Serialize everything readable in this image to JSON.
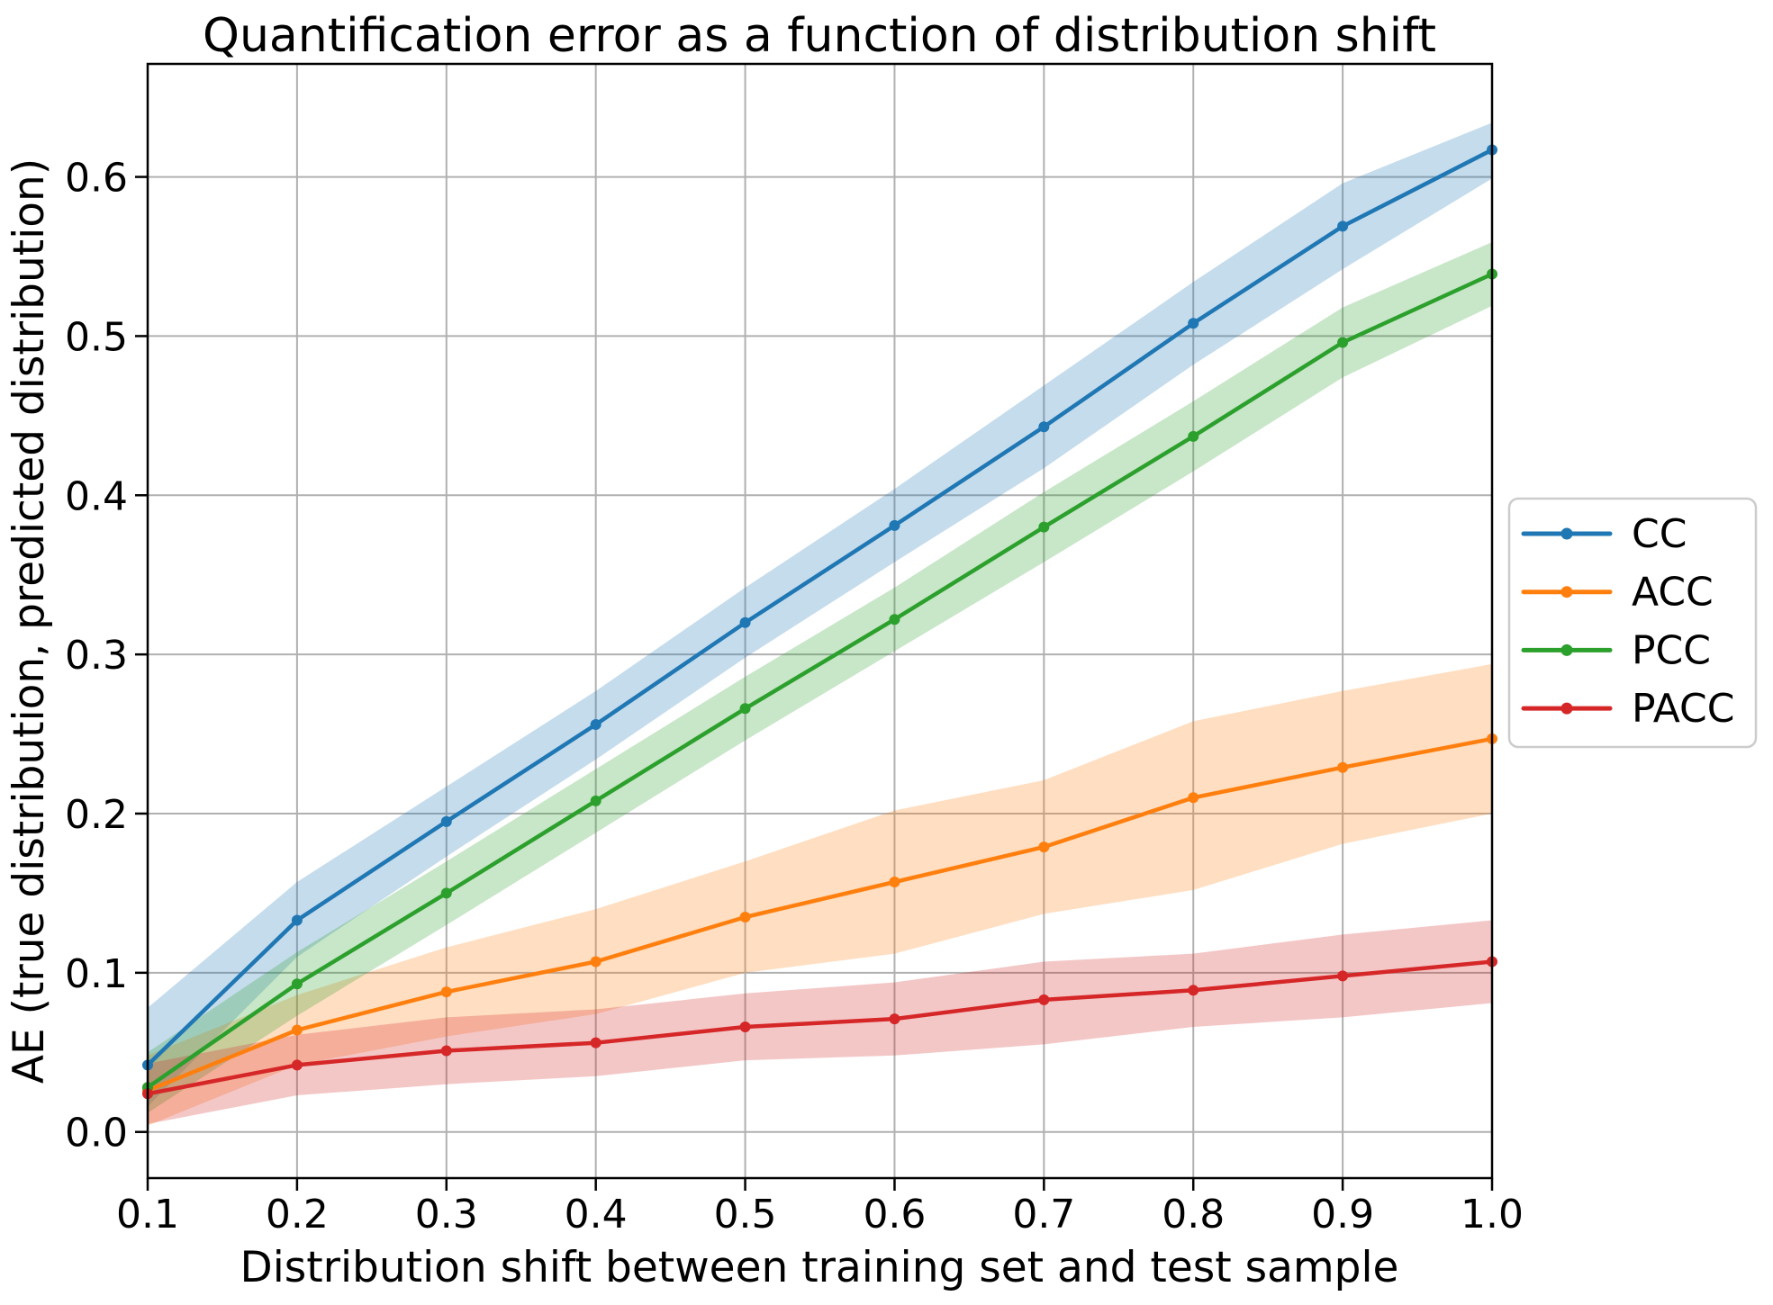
{
  "figure": {
    "background": "#ffffff"
  },
  "chart_data": {
    "type": "line",
    "title": "Quantification error as a function of distribution shift",
    "xlabel": "Distribution shift between training set and test sample",
    "ylabel": "AE (true distribution, predicted distribution)",
    "x": [
      0.1,
      0.2,
      0.3,
      0.4,
      0.5,
      0.6,
      0.7,
      0.8,
      0.9,
      1.0
    ],
    "x_tick_labels": [
      "0.1",
      "0.2",
      "0.3",
      "0.4",
      "0.5",
      "0.6",
      "0.7",
      "0.8",
      "0.9",
      "1.0"
    ],
    "y_ticks": [
      0.0,
      0.1,
      0.2,
      0.3,
      0.4,
      0.5,
      0.6
    ],
    "y_tick_labels": [
      "0.0",
      "0.1",
      "0.2",
      "0.3",
      "0.4",
      "0.5",
      "0.6"
    ],
    "xlim": [
      0.1,
      1.0
    ],
    "ylim": [
      -0.029,
      0.671
    ],
    "grid": true,
    "grid_color": "#b0b0b0",
    "spine_color": "#000000",
    "text_color": "#000000",
    "band_opacity": 0.26,
    "legend_position": "outside-right",
    "legend_border_color": "#cccccc",
    "legend_background": "#ffffff",
    "series": [
      {
        "name": "CC",
        "color": "#1f77b4",
        "values": [
          0.042,
          0.133,
          0.195,
          0.256,
          0.32,
          0.381,
          0.443,
          0.508,
          0.569,
          0.617
        ],
        "band_lower": [
          0.016,
          0.11,
          0.173,
          0.234,
          0.298,
          0.358,
          0.417,
          0.482,
          0.542,
          0.599
        ],
        "band_upper": [
          0.078,
          0.157,
          0.217,
          0.277,
          0.342,
          0.404,
          0.469,
          0.534,
          0.596,
          0.634
        ]
      },
      {
        "name": "ACC",
        "color": "#ff7f0e",
        "values": [
          0.026,
          0.064,
          0.088,
          0.107,
          0.135,
          0.157,
          0.179,
          0.21,
          0.229,
          0.247
        ],
        "band_lower": [
          0.004,
          0.042,
          0.06,
          0.074,
          0.1,
          0.112,
          0.137,
          0.152,
          0.181,
          0.2
        ],
        "band_upper": [
          0.048,
          0.086,
          0.116,
          0.14,
          0.17,
          0.202,
          0.221,
          0.258,
          0.277,
          0.294
        ]
      },
      {
        "name": "PCC",
        "color": "#2ca02c",
        "values": [
          0.028,
          0.093,
          0.15,
          0.208,
          0.266,
          0.322,
          0.38,
          0.437,
          0.496,
          0.539
        ],
        "band_lower": [
          0.012,
          0.073,
          0.13,
          0.188,
          0.246,
          0.302,
          0.358,
          0.415,
          0.474,
          0.519
        ],
        "band_upper": [
          0.05,
          0.113,
          0.17,
          0.228,
          0.286,
          0.342,
          0.402,
          0.459,
          0.518,
          0.559
        ]
      },
      {
        "name": "PACC",
        "color": "#d62728",
        "values": [
          0.024,
          0.042,
          0.051,
          0.056,
          0.066,
          0.071,
          0.083,
          0.089,
          0.098,
          0.107
        ],
        "band_lower": [
          0.005,
          0.023,
          0.03,
          0.035,
          0.045,
          0.048,
          0.055,
          0.066,
          0.072,
          0.081
        ],
        "band_upper": [
          0.043,
          0.061,
          0.072,
          0.077,
          0.087,
          0.094,
          0.107,
          0.112,
          0.124,
          0.133
        ]
      }
    ]
  }
}
